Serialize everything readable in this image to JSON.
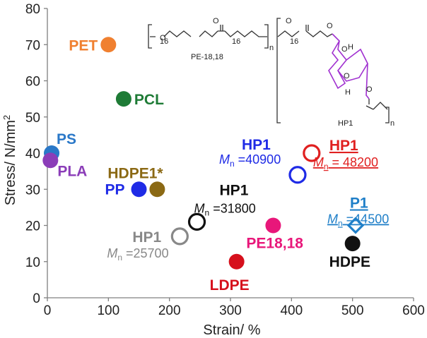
{
  "chart_data": {
    "type": "scatter",
    "xlabel": "Strain/ %",
    "ylabel": "Stress/ N/mm2",
    "xlim": [
      0,
      600
    ],
    "ylim": [
      0,
      80
    ],
    "xticks": [
      0,
      100,
      200,
      300,
      400,
      500,
      600
    ],
    "yticks": [
      0,
      10,
      20,
      30,
      40,
      50,
      60,
      70,
      80
    ],
    "grid": false,
    "points": [
      {
        "label": "PET",
        "x": 100,
        "y": 70,
        "color": "#F08030",
        "marker": "filled-circle"
      },
      {
        "label": "PCL",
        "x": 125,
        "y": 55,
        "color": "#1E7B36",
        "marker": "filled-circle"
      },
      {
        "label": "PS",
        "x": 7,
        "y": 40,
        "color": "#2A78C8",
        "marker": "filled-circle"
      },
      {
        "label": "PLA",
        "x": 5,
        "y": 38,
        "color": "#8B3DB8",
        "marker": "filled-circle"
      },
      {
        "label": "PP",
        "x": 150,
        "y": 30,
        "color": "#1F2BE6",
        "marker": "filled-circle"
      },
      {
        "label": "HDPE1*",
        "x": 180,
        "y": 30,
        "color": "#8B6914",
        "marker": "filled-circle"
      },
      {
        "label": "HP1",
        "sublabel_sym": "M",
        "sublabel_sub": "n",
        "sublabel_val": " =31800",
        "x": 245,
        "y": 21,
        "color": "#111111",
        "marker": "open-circle"
      },
      {
        "label": "HP1",
        "sublabel_sym": "M",
        "sublabel_sub": "n",
        "sublabel_val": " =25700",
        "x": 217,
        "y": 17,
        "color": "#888888",
        "marker": "open-circle"
      },
      {
        "label": "LDPE",
        "x": 310,
        "y": 10,
        "color": "#D6101C",
        "marker": "filled-circle"
      },
      {
        "label": "PE18,18",
        "x": 370,
        "y": 20,
        "color": "#E8177A",
        "marker": "filled-circle"
      },
      {
        "label": "HP1",
        "sublabel_sym": "M",
        "sublabel_sub": "n",
        "sublabel_val": " =40900",
        "x": 410,
        "y": 34,
        "color": "#1F2BE6",
        "marker": "open-circle"
      },
      {
        "label": "HP1",
        "sublabel_sym": "M",
        "sublabel_sub": "n",
        "sublabel_val": " = 48200",
        "x": 433,
        "y": 40,
        "color": "#E02020",
        "marker": "open-circle",
        "underline": true
      },
      {
        "label": "P1",
        "sublabel_sym": "M",
        "sublabel_sub": "n",
        "sublabel_val": " =44500",
        "x": 505,
        "y": 20,
        "color": "#1F7FC8",
        "marker": "open-diamond",
        "underline": true
      },
      {
        "label": "HDPE",
        "x": 500,
        "y": 15,
        "color": "#111111",
        "marker": "filled-circle"
      }
    ],
    "structure_labels": {
      "n1": "16",
      "n2": "16",
      "repeat1": "n",
      "polymer1": "PE-18,18",
      "n3": "16",
      "repeat2": "n",
      "polymer2": "HP1",
      "h1": "H",
      "h2": "H",
      "o": "O"
    }
  },
  "colors": {
    "axis": "#808080",
    "structure_line": "#333333",
    "structure_purple": "#A030D0"
  }
}
